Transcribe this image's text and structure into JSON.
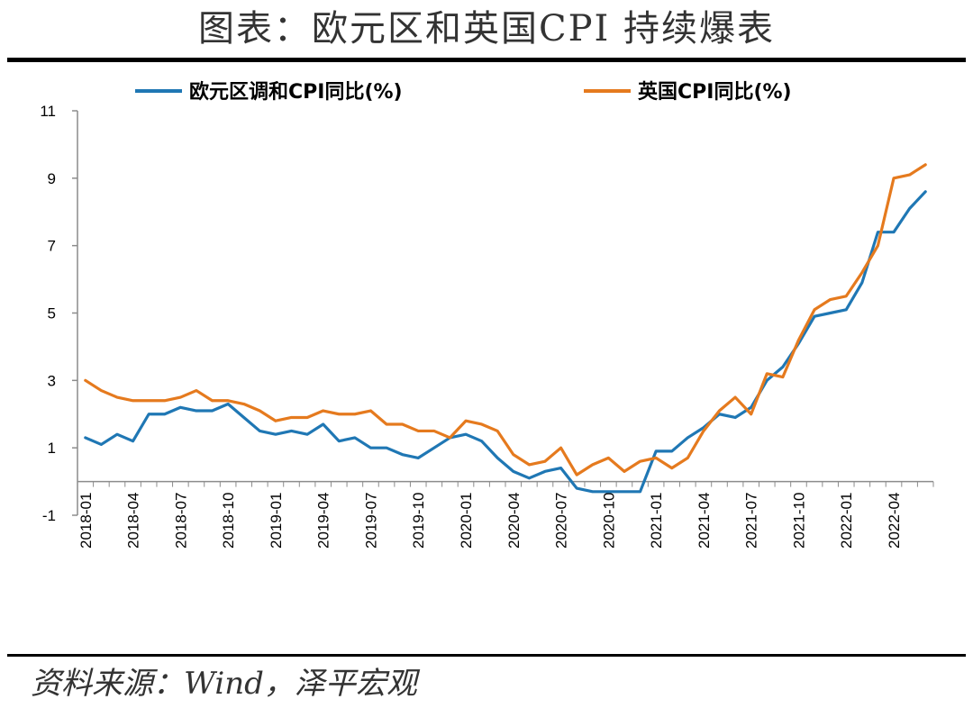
{
  "title": "图表：欧元区和英国CPI 持续爆表",
  "source": "资料来源：Wind，泽平宏观",
  "chart_data": {
    "type": "line",
    "ylim": [
      -1,
      11
    ],
    "y_ticks": [
      -1,
      1,
      3,
      5,
      7,
      9,
      11
    ],
    "x_tick_labels": [
      "2018-01",
      "2018-04",
      "2018-07",
      "2018-10",
      "2019-01",
      "2019-04",
      "2019-07",
      "2019-10",
      "2020-01",
      "2020-04",
      "2020-07",
      "2020-10",
      "2021-01",
      "2021-04",
      "2021-07",
      "2021-10",
      "2022-01",
      "2022-04"
    ],
    "legend_position": "top",
    "grid": false,
    "x": [
      "2018-01",
      "2018-02",
      "2018-03",
      "2018-04",
      "2018-05",
      "2018-06",
      "2018-07",
      "2018-08",
      "2018-09",
      "2018-10",
      "2018-11",
      "2018-12",
      "2019-01",
      "2019-02",
      "2019-03",
      "2019-04",
      "2019-05",
      "2019-06",
      "2019-07",
      "2019-08",
      "2019-09",
      "2019-10",
      "2019-11",
      "2019-12",
      "2020-01",
      "2020-02",
      "2020-03",
      "2020-04",
      "2020-05",
      "2020-06",
      "2020-07",
      "2020-08",
      "2020-09",
      "2020-10",
      "2020-11",
      "2020-12",
      "2021-01",
      "2021-02",
      "2021-03",
      "2021-04",
      "2021-05",
      "2021-06",
      "2021-07",
      "2021-08",
      "2021-09",
      "2021-10",
      "2021-11",
      "2021-12",
      "2022-01",
      "2022-02",
      "2022-03",
      "2022-04",
      "2022-05",
      "2022-06"
    ],
    "series": [
      {
        "name": "欧元区调和CPI同比(%)",
        "color": "#1f77b4",
        "values": [
          1.3,
          1.1,
          1.4,
          1.2,
          2.0,
          2.0,
          2.2,
          2.1,
          2.1,
          2.3,
          1.9,
          1.5,
          1.4,
          1.5,
          1.4,
          1.7,
          1.2,
          1.3,
          1.0,
          1.0,
          0.8,
          0.7,
          1.0,
          1.3,
          1.4,
          1.2,
          0.7,
          0.3,
          0.1,
          0.3,
          0.4,
          -0.2,
          -0.3,
          -0.3,
          -0.3,
          -0.3,
          0.9,
          0.9,
          1.3,
          1.6,
          2.0,
          1.9,
          2.2,
          3.0,
          3.4,
          4.1,
          4.9,
          5.0,
          5.1,
          5.9,
          7.4,
          7.4,
          8.1,
          8.6
        ]
      },
      {
        "name": "英国CPI同比(%)",
        "color": "#e57a1e",
        "values": [
          3.0,
          2.7,
          2.5,
          2.4,
          2.4,
          2.4,
          2.5,
          2.7,
          2.4,
          2.4,
          2.3,
          2.1,
          1.8,
          1.9,
          1.9,
          2.1,
          2.0,
          2.0,
          2.1,
          1.7,
          1.7,
          1.5,
          1.5,
          1.3,
          1.8,
          1.7,
          1.5,
          0.8,
          0.5,
          0.6,
          1.0,
          0.2,
          0.5,
          0.7,
          0.3,
          0.6,
          0.7,
          0.4,
          0.7,
          1.5,
          2.1,
          2.5,
          2.0,
          3.2,
          3.1,
          4.2,
          5.1,
          5.4,
          5.5,
          6.2,
          7.0,
          9.0,
          9.1,
          9.4
        ]
      }
    ]
  }
}
